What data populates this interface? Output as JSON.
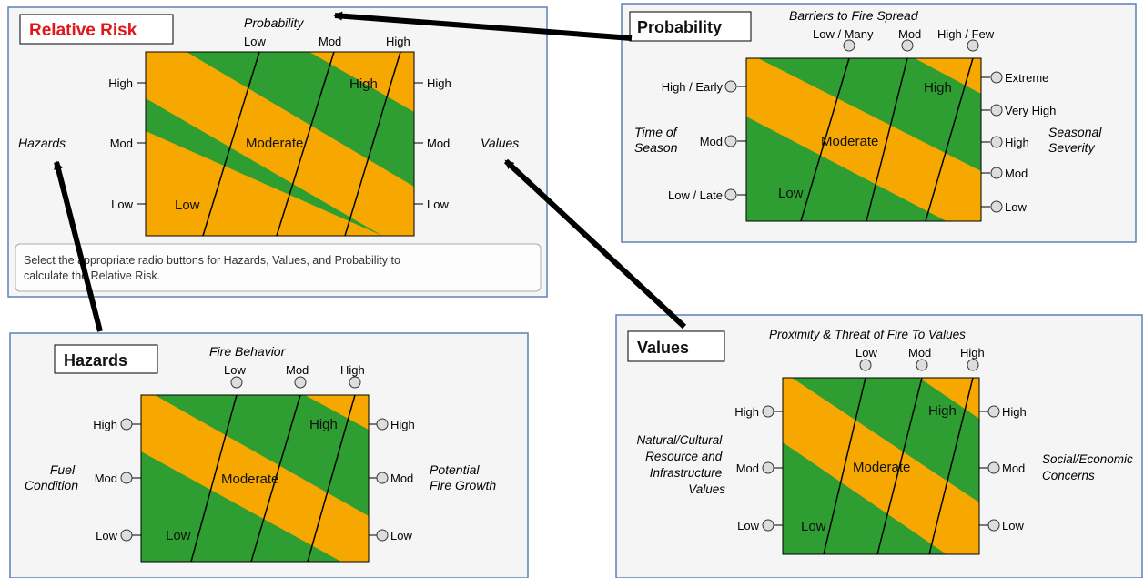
{
  "colors": {
    "green": "#2e9e32",
    "orange": "#f7a800",
    "panel_bg": "#f5f5f5",
    "panel_border": "#5b82b8",
    "title_red": "#e0161b",
    "arrow": "#000000"
  },
  "relative_risk": {
    "title": "Relative Risk",
    "top_axis_label": "Probability",
    "top_ticks": [
      "Low",
      "Mod",
      "High"
    ],
    "left_axis_label": "Hazards",
    "left_ticks": [
      "High",
      "Mod",
      "Low"
    ],
    "right_axis_label": "Values",
    "right_ticks": [
      "High",
      "Mod",
      "Low"
    ],
    "zone_labels": [
      "High",
      "Moderate",
      "Low"
    ],
    "instruction": "Select the appropriate radio buttons for Hazards, Values, and Probability to calculate the Relative Risk."
  },
  "probability": {
    "title": "Probability",
    "top_axis_label": "Barriers to Fire Spread",
    "top_ticks": [
      "Low / Many",
      "Mod",
      "High / Few"
    ],
    "left_axis_label_lines": [
      "Time of",
      "Season"
    ],
    "left_ticks": [
      "High / Early",
      "Mod",
      "Low / Late"
    ],
    "right_axis_label_lines": [
      "Seasonal",
      "Severity"
    ],
    "right_ticks": [
      "Extreme",
      "Very High",
      "High",
      "Mod",
      "Low"
    ],
    "zone_labels": [
      "High",
      "Moderate",
      "Low"
    ]
  },
  "hazards": {
    "title": "Hazards",
    "top_axis_label": "Fire Behavior",
    "top_ticks": [
      "Low",
      "Mod",
      "High"
    ],
    "left_axis_label_lines": [
      "Fuel",
      "Condition"
    ],
    "left_ticks": [
      "High",
      "Mod",
      "Low"
    ],
    "right_axis_label_lines": [
      "Potential",
      "Fire Growth"
    ],
    "right_ticks": [
      "High",
      "Mod",
      "Low"
    ],
    "zone_labels": [
      "High",
      "Moderate",
      "Low"
    ]
  },
  "values": {
    "title": "Values",
    "top_axis_label": "Proximity & Threat of Fire To Values",
    "top_ticks": [
      "Low",
      "Mod",
      "High"
    ],
    "left_axis_label_lines": [
      "Natural/Cultural",
      "Resource and",
      "Infrastructure",
      "Values"
    ],
    "left_ticks": [
      "High",
      "Mod",
      "Low"
    ],
    "right_axis_label_lines": [
      "Social/Economic",
      "Concerns"
    ],
    "right_ticks": [
      "High",
      "Mod",
      "Low"
    ],
    "zone_labels": [
      "High",
      "Moderate",
      "Low"
    ]
  }
}
